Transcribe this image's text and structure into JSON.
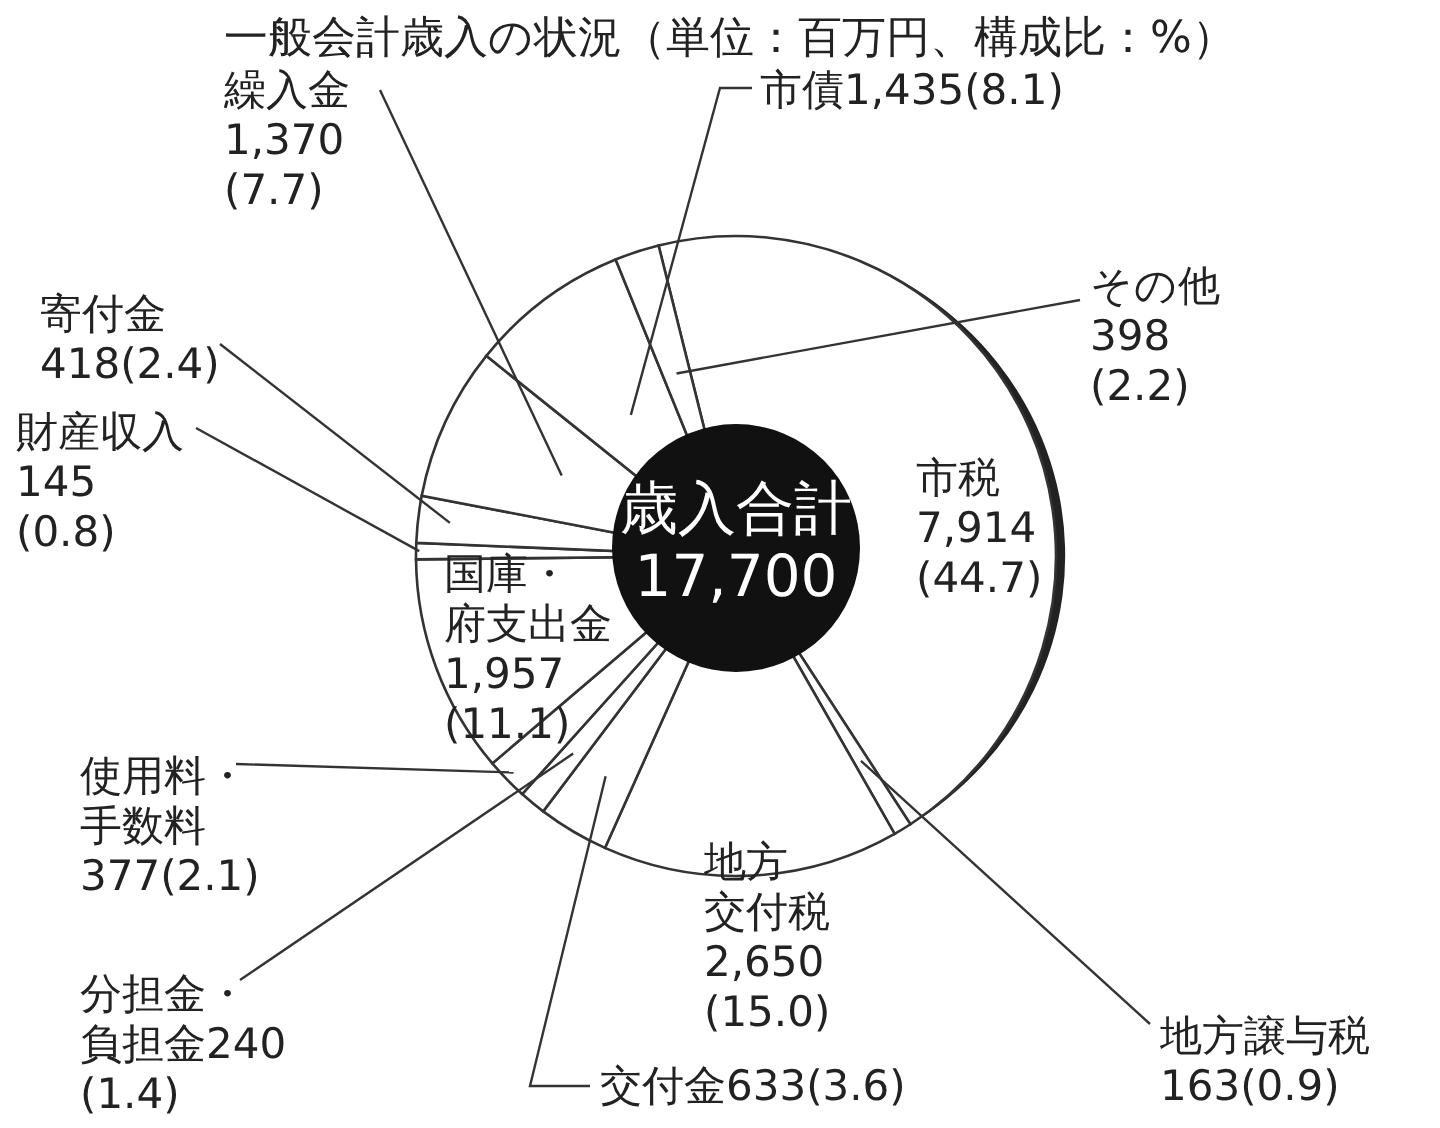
{
  "chart_data": {
    "type": "pie",
    "title": "一般会計歳入の状況（単位：百万円、構成比：%）",
    "categories": [
      "市税",
      "地方譲与税",
      "地方交付税",
      "交付金",
      "分担金・負担金",
      "使用料・手数料",
      "国庫・府支出金",
      "財産収入",
      "寄付金",
      "繰入金",
      "市債",
      "その他"
    ],
    "values": [
      7914,
      163,
      2650,
      633,
      240,
      377,
      1957,
      145,
      418,
      1370,
      1435,
      398
    ],
    "value_labels": [
      "7,914(44.7)",
      "163(0.9)",
      "2,650(15.0)",
      "633(3.6)",
      "240(1.4)",
      "377(2.1)",
      "1,957(11.1)",
      "145(0.8)",
      "418(2.4)",
      "1,370(7.7)",
      "1,435(8.1)",
      "398(2.2)"
    ],
    "colors": [
      "#ffffff",
      "#ffffff",
      "#ffffff",
      "#ffffff",
      "#ffffff",
      "#ffffff",
      "#ffffff",
      "#ffffff",
      "#ffffff",
      "#ffffff",
      "#ffffff",
      "#ffffff"
    ],
    "annotations": [
      "歳入合計",
      "17,700"
    ]
  }
}
